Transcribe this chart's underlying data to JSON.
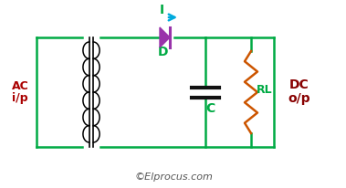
{
  "bg_color": "#ffffff",
  "wire_color": "#00aa44",
  "diode_color": "#9933aa",
  "resistor_color": "#cc5500",
  "text_ac_color": "#aa0000",
  "text_dc_color": "#880000",
  "text_label_color": "#00aa44",
  "arrow_color": "#00aadd",
  "transformer_coil_color": "#000000",
  "capacitor_color": "#111111",
  "watermark_color": "#555555",
  "figsize": [
    3.79,
    2.06
  ],
  "dpi": 100,
  "xlim": [
    0,
    37.9
  ],
  "ylim": [
    0,
    20.6
  ]
}
